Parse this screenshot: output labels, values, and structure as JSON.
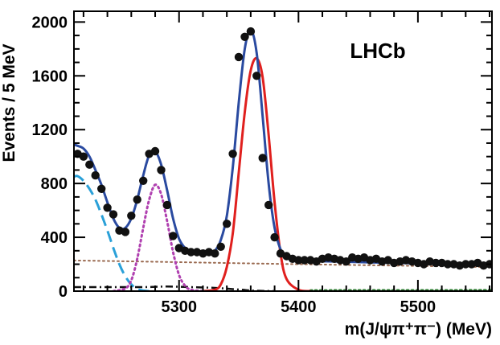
{
  "chart_data": {
    "type": "scatter",
    "title": "",
    "experiment_label": "LHCb",
    "xlabel": "m(J/ψπ⁺π⁻)  (MeV)",
    "ylabel": "Events / 5 MeV",
    "xlim": [
      5212,
      5562
    ],
    "ylim": [
      0,
      2080
    ],
    "xticks": [
      5300,
      5400,
      5500
    ],
    "yticks": [
      0,
      400,
      800,
      1200,
      1600,
      2000
    ],
    "grid": false,
    "legend": "none",
    "colors": {
      "data": "#111111",
      "total_fit": "#2a4aa0",
      "bs_signal": "#e0201e",
      "b0_signal": "#b040b0",
      "partially_reconstructed": "#2aa0d8",
      "combinatorial": "#9a6a50",
      "misid": "#111111",
      "other_bkg": "#2e7d32"
    },
    "data_points": {
      "x": [
        5215,
        5220,
        5225,
        5230,
        5235,
        5240,
        5245,
        5250,
        5255,
        5260,
        5265,
        5270,
        5275,
        5280,
        5285,
        5290,
        5295,
        5300,
        5305,
        5310,
        5315,
        5320,
        5325,
        5330,
        5335,
        5340,
        5345,
        5350,
        5355,
        5360,
        5365,
        5370,
        5375,
        5380,
        5385,
        5390,
        5395,
        5400,
        5405,
        5410,
        5415,
        5420,
        5425,
        5430,
        5435,
        5440,
        5445,
        5450,
        5455,
        5460,
        5465,
        5470,
        5475,
        5480,
        5485,
        5490,
        5495,
        5500,
        5505,
        5510,
        5515,
        5520,
        5525,
        5530,
        5535,
        5540,
        5545,
        5550,
        5555,
        5560
      ],
      "y": [
        1020,
        1000,
        940,
        860,
        760,
        620,
        570,
        450,
        440,
        560,
        680,
        820,
        1020,
        1040,
        900,
        640,
        410,
        320,
        300,
        290,
        290,
        280,
        290,
        280,
        330,
        500,
        1020,
        1740,
        1890,
        1930,
        1600,
        990,
        640,
        400,
        280,
        260,
        240,
        230,
        230,
        230,
        220,
        240,
        250,
        240,
        230,
        220,
        250,
        240,
        250,
        230,
        240,
        220,
        230,
        210,
        220,
        230,
        220,
        210,
        200,
        220,
        210,
        210,
        200,
        200,
        190,
        200,
        200,
        210,
        190,
        200
      ]
    },
    "series": [
      {
        "role": "total fit",
        "style": "solid",
        "x": [
          5212,
          5215,
          5220,
          5225,
          5230,
          5235,
          5240,
          5245,
          5250,
          5255,
          5260,
          5265,
          5270,
          5275,
          5280,
          5285,
          5290,
          5295,
          5300,
          5305,
          5310,
          5315,
          5320,
          5325,
          5330,
          5335,
          5340,
          5345,
          5350,
          5355,
          5360,
          5365,
          5370,
          5375,
          5380,
          5385,
          5390,
          5395,
          5400,
          5410,
          5420,
          5440,
          5460,
          5480,
          5500,
          5520,
          5540,
          5560
        ],
        "y": [
          1090,
          1080,
          1060,
          1000,
          900,
          790,
          660,
          540,
          470,
          470,
          540,
          680,
          860,
          1010,
          1040,
          940,
          750,
          540,
          390,
          320,
          290,
          280,
          280,
          285,
          300,
          380,
          560,
          920,
          1400,
          1800,
          1940,
          1770,
          1300,
          800,
          470,
          310,
          250,
          235,
          230,
          225,
          222,
          218,
          214,
          210,
          206,
          202,
          198,
          195
        ]
      },
      {
        "role": "Bs signal",
        "style": "solid",
        "x": [
          5320,
          5330,
          5335,
          5340,
          5345,
          5350,
          5355,
          5360,
          5365,
          5370,
          5375,
          5380,
          5385,
          5390,
          5400,
          5410
        ],
        "y": [
          0,
          10,
          50,
          180,
          430,
          880,
          1330,
          1640,
          1730,
          1590,
          1160,
          660,
          280,
          90,
          10,
          0
        ]
      },
      {
        "role": "B0 signal",
        "style": "dotted",
        "x": [
          5245,
          5255,
          5260,
          5265,
          5270,
          5275,
          5280,
          5285,
          5290,
          5295,
          5300,
          5305,
          5310,
          5320
        ],
        "y": [
          0,
          20,
          80,
          240,
          470,
          680,
          790,
          720,
          520,
          290,
          120,
          40,
          10,
          0
        ]
      },
      {
        "role": "partially reconstructed",
        "style": "dashed",
        "x": [
          5212,
          5215,
          5220,
          5225,
          5230,
          5235,
          5240,
          5245,
          5250,
          5255,
          5260,
          5265,
          5270,
          5275
        ],
        "y": [
          850,
          855,
          820,
          760,
          680,
          570,
          450,
          320,
          200,
          110,
          50,
          15,
          5,
          0
        ]
      },
      {
        "role": "combinatorial",
        "style": "dotted",
        "x": [
          5212,
          5300,
          5400,
          5500,
          5562
        ],
        "y": [
          228,
          215,
          200,
          187,
          178
        ]
      },
      {
        "role": "misidentified",
        "style": "dashdot",
        "x": [
          5212,
          5240,
          5270,
          5290,
          5310,
          5330,
          5350,
          5360,
          5370,
          5380
        ],
        "y": [
          30,
          30,
          30,
          34,
          30,
          24,
          12,
          5,
          2,
          0
        ]
      },
      {
        "role": "other",
        "style": "dotted",
        "x": [
          5410,
          5450,
          5500,
          5562
        ],
        "y": [
          5,
          6,
          6,
          7
        ]
      }
    ]
  }
}
